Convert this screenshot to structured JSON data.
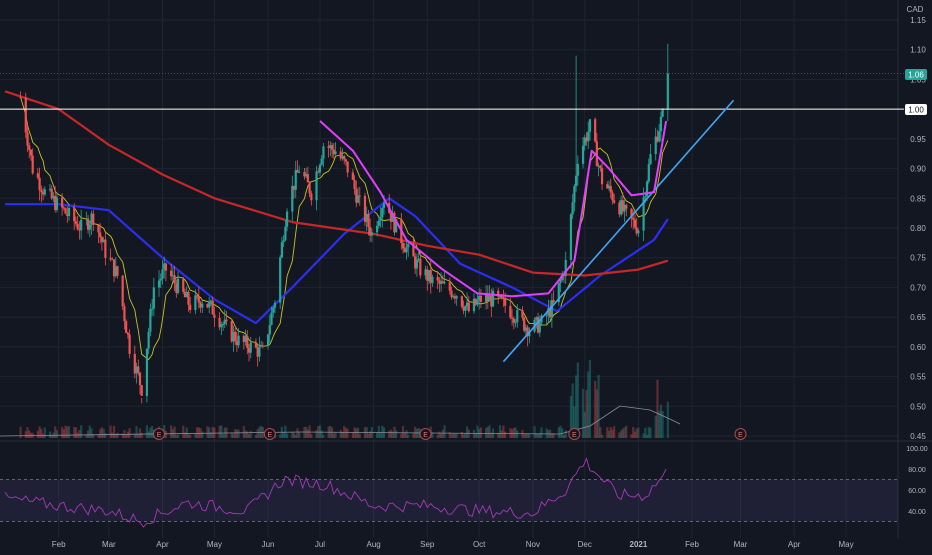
{
  "currency": "CAD",
  "colors": {
    "background": "#131722",
    "grid": "#1f2430",
    "up": "#26a69a",
    "down": "#ef5350",
    "price_text": "#b2b5be",
    "ma_short": "#c8c41f",
    "ma_mid": "#2a2ff0",
    "ma_long": "#c62828",
    "curve": "#e040fb",
    "trendline": "#42a5f5",
    "rsi_line": "#a33bb5",
    "rsi_band": "#7e57c2"
  },
  "price_badges": {
    "last": "1.06",
    "resistance": "1.00"
  },
  "earnings_marker": "E",
  "chart_data": {
    "type": "candlestick",
    "currency": "CAD",
    "y_ticks": [
      "1.15",
      "1.10",
      "1.05",
      "1.00",
      "0.95",
      "0.90",
      "0.85",
      "0.80",
      "0.75",
      "0.70",
      "0.65",
      "0.60",
      "0.55",
      "0.50",
      "0.45"
    ],
    "ylim": [
      0.45,
      1.15
    ],
    "x_ticks": [
      "Feb",
      "Mar",
      "Apr",
      "May",
      "Jun",
      "Jul",
      "Aug",
      "Sep",
      "Oct",
      "Nov",
      "Dec",
      "2021",
      "Feb",
      "Mar",
      "Apr",
      "May"
    ],
    "last_price": 1.06,
    "horizontal_level": 1.0,
    "trendline": {
      "from": {
        "date": "2020-10-15",
        "price": 0.575
      },
      "to": {
        "date": "2021-02-25",
        "price": 1.015
      }
    },
    "earnings_dates": [
      "2020-03-30",
      "2020-06-02",
      "2020-08-31",
      "2020-11-25",
      "2021-03-01"
    ],
    "price_path": [
      [
        "2020-01-10",
        1.02
      ],
      [
        "2020-01-17",
        0.9
      ],
      [
        "2020-01-24",
        0.86
      ],
      [
        "2020-01-31",
        0.84
      ],
      [
        "2020-02-07",
        0.82
      ],
      [
        "2020-02-14",
        0.8
      ],
      [
        "2020-02-21",
        0.82
      ],
      [
        "2020-02-28",
        0.76
      ],
      [
        "2020-03-06",
        0.72
      ],
      [
        "2020-03-13",
        0.6
      ],
      [
        "2020-03-20",
        0.53
      ],
      [
        "2020-03-27",
        0.7
      ],
      [
        "2020-04-03",
        0.73
      ],
      [
        "2020-04-10",
        0.7
      ],
      [
        "2020-04-17",
        0.67
      ],
      [
        "2020-04-24",
        0.68
      ],
      [
        "2020-05-01",
        0.66
      ],
      [
        "2020-05-08",
        0.63
      ],
      [
        "2020-05-15",
        0.61
      ],
      [
        "2020-05-22",
        0.6
      ],
      [
        "2020-05-29",
        0.59
      ],
      [
        "2020-06-05",
        0.68
      ],
      [
        "2020-06-12",
        0.84
      ],
      [
        "2020-06-19",
        0.9
      ],
      [
        "2020-06-26",
        0.86
      ],
      [
        "2020-07-03",
        0.94
      ],
      [
        "2020-07-10",
        0.93
      ],
      [
        "2020-07-17",
        0.9
      ],
      [
        "2020-07-24",
        0.84
      ],
      [
        "2020-07-31",
        0.79
      ],
      [
        "2020-08-07",
        0.85
      ],
      [
        "2020-08-14",
        0.8
      ],
      [
        "2020-08-21",
        0.76
      ],
      [
        "2020-08-28",
        0.73
      ],
      [
        "2020-09-04",
        0.71
      ],
      [
        "2020-09-11",
        0.7
      ],
      [
        "2020-09-18",
        0.69
      ],
      [
        "2020-09-25",
        0.66
      ],
      [
        "2020-10-02",
        0.68
      ],
      [
        "2020-10-09",
        0.68
      ],
      [
        "2020-10-16",
        0.67
      ],
      [
        "2020-10-23",
        0.65
      ],
      [
        "2020-10-30",
        0.63
      ],
      [
        "2020-11-06",
        0.64
      ],
      [
        "2020-11-13",
        0.67
      ],
      [
        "2020-11-20",
        0.74
      ],
      [
        "2020-11-27",
        0.92
      ],
      [
        "2020-12-04",
        0.97
      ],
      [
        "2020-12-11",
        0.88
      ],
      [
        "2020-12-18",
        0.85
      ],
      [
        "2020-12-25",
        0.82
      ],
      [
        "2021-01-01",
        0.8
      ],
      [
        "2021-01-08",
        0.92
      ],
      [
        "2021-01-15",
        0.99
      ],
      [
        "2021-01-18",
        1.06
      ]
    ],
    "moving_averages": [
      {
        "points": [
          [
            "2020-01-01",
            0.84
          ],
          [
            "2020-02-01",
            0.84
          ],
          [
            "2020-03-01",
            0.83
          ],
          [
            "2020-04-01",
            0.75
          ],
          [
            "2020-05-01",
            0.68
          ],
          [
            "2020-05-25",
            0.64
          ],
          [
            "2020-06-15",
            0.7
          ],
          [
            "2020-07-15",
            0.79
          ],
          [
            "2020-08-10",
            0.85
          ],
          [
            "2020-08-25",
            0.82
          ],
          [
            "2020-09-20",
            0.74
          ],
          [
            "2020-10-20",
            0.7
          ],
          [
            "2020-11-15",
            0.66
          ],
          [
            "2020-12-10",
            0.72
          ],
          [
            "2021-01-10",
            0.78
          ],
          [
            "2021-01-18",
            0.815
          ]
        ]
      },
      {
        "points": [
          [
            "2020-01-01",
            1.03
          ],
          [
            "2020-02-01",
            1.0
          ],
          [
            "2020-03-01",
            0.94
          ],
          [
            "2020-04-01",
            0.89
          ],
          [
            "2020-05-01",
            0.85
          ],
          [
            "2020-06-15",
            0.81
          ],
          [
            "2020-08-01",
            0.79
          ],
          [
            "2020-09-01",
            0.77
          ],
          [
            "2020-10-01",
            0.755
          ],
          [
            "2020-11-01",
            0.725
          ],
          [
            "2020-12-01",
            0.72
          ],
          [
            "2021-01-01",
            0.73
          ],
          [
            "2021-01-18",
            0.745
          ]
        ]
      }
    ],
    "rsi": {
      "ylim": [
        20,
        100
      ],
      "tick_labels": [
        "100.00",
        "80.00",
        "60.00",
        "40.00"
      ],
      "band": [
        70,
        30
      ],
      "points": [
        [
          "2020-01-01",
          52
        ],
        [
          "2020-02-01",
          45
        ],
        [
          "2020-03-01",
          40
        ],
        [
          "2020-03-20",
          30
        ],
        [
          "2020-04-15",
          48
        ],
        [
          "2020-05-20",
          40
        ],
        [
          "2020-06-10",
          70
        ],
        [
          "2020-07-05",
          65
        ],
        [
          "2020-08-01",
          45
        ],
        [
          "2020-09-01",
          45
        ],
        [
          "2020-10-01",
          40
        ],
        [
          "2020-11-01",
          38
        ],
        [
          "2020-11-20",
          60
        ],
        [
          "2020-12-01",
          88
        ],
        [
          "2020-12-20",
          55
        ],
        [
          "2021-01-05",
          55
        ],
        [
          "2021-01-18",
          78
        ]
      ]
    }
  }
}
